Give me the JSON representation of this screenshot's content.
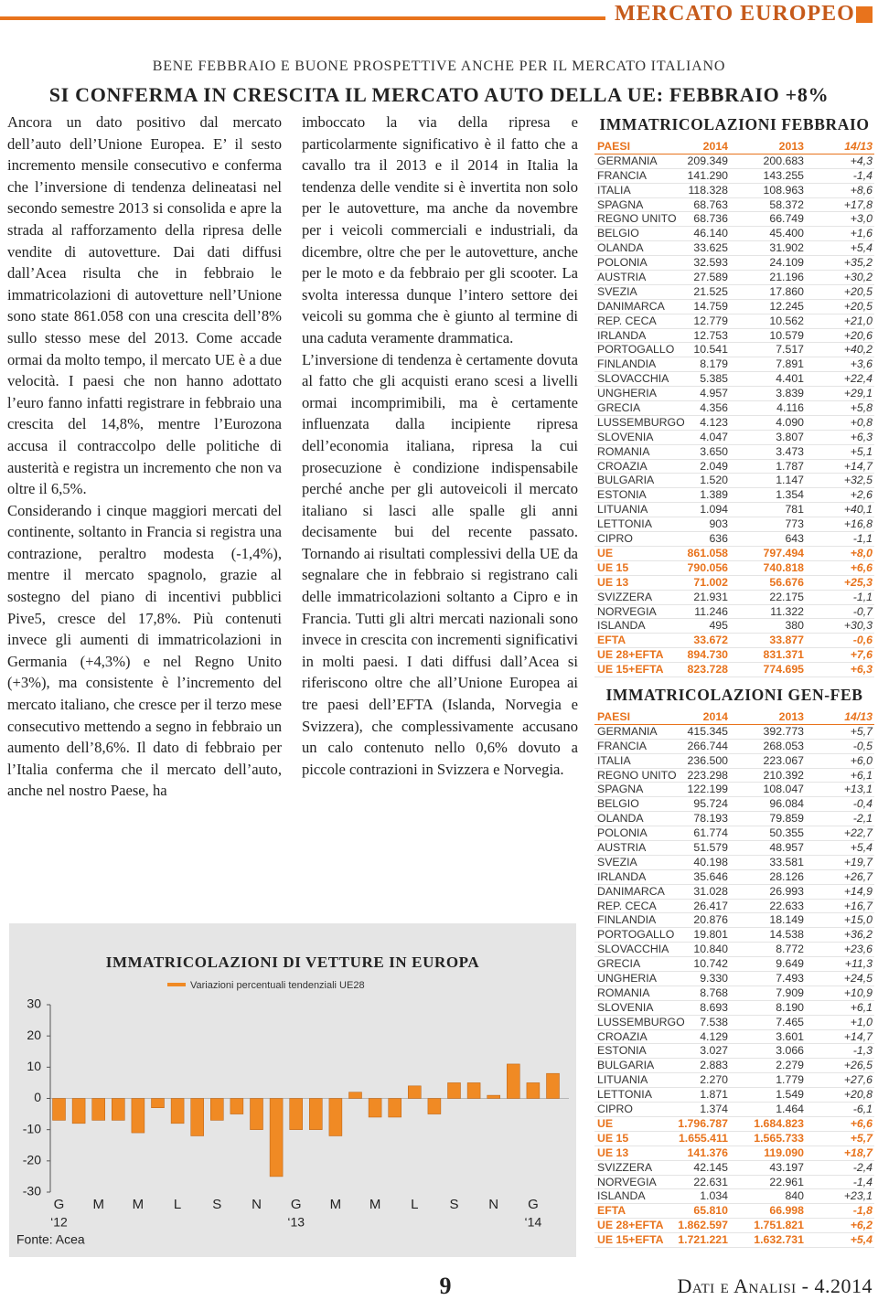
{
  "header": {
    "section": "MERCATO EUROPEO",
    "kicker": "BENE FEBBRAIO E BUONE PROSPETTIVE ANCHE PER IL MERCATO ITALIANO",
    "title": "SI CONFERMA IN CRESCITA IL MERCATO AUTO DELLA UE: FEBBRAIO +8%"
  },
  "article": {
    "column1": [
      "Ancora un dato positivo dal mercato dell’auto dell’Unione Europea. E’ il sesto incremento mensile consecutivo e conferma che l’inversione di tendenza delineatasi nel secondo semestre 2013 si consolida e apre la strada al rafforzamento della ripresa delle vendite di autovetture. Dai dati diffusi dall’Acea risulta che in febbraio le immatricolazioni di autovetture nell’Unione sono state 861.058 con una crescita dell’8% sullo stesso mese del 2013. Come accade ormai da molto tempo, il mercato UE è a due velocità. I paesi che non hanno adottato l’euro fanno infatti registrare in febbraio una crescita del 14,8%, mentre l’Eurozona accusa il contraccolpo delle politiche di austerità e registra un incremento che non va oltre il 6,5%.",
      "Considerando i cinque maggiori mercati del continente, soltanto in Francia si registra una contrazione, peraltro modesta (-1,4%), mentre il mercato spagnolo, grazie al sostegno del piano di incentivi pubblici Pive5, cresce del 17,8%. Più contenuti invece gli aumenti di immatricolazioni in Germania (+4,3%) e nel Regno Unito (+3%), ma consistente è l’incremento del mercato italiano, che cresce per il terzo mese consecutivo mettendo a segno in febbraio un aumento dell’8,6%. Il dato di febbraio per l’Italia conferma che il mercato dell’auto, anche nel nostro Paese, ha"
    ],
    "column2": [
      "imboccato la via della ripresa e particolarmente significativo è il fatto che a cavallo tra il 2013 e il 2014 in Italia la tendenza delle vendite si è invertita non solo per le autovetture, ma anche da novembre per i veicoli commerciali e industriali, da dicembre, oltre che per le autovetture, anche per le moto e da febbraio per gli scooter. La svolta interessa dunque l’intero settore dei veicoli su gomma che è giunto al termine di una caduta veramente drammatica.",
      "L’inversione di tendenza è certamente dovuta al fatto che gli acquisti erano scesi a livelli ormai incomprimibili, ma è certamente influenzata dalla incipiente ripresa dell’economia italiana, ripresa la cui prosecuzione è condizione indispensabile perché anche per gli autoveicoli il mercato italiano si lasci alle spalle gli anni decisamente bui del recente passato. Tornando ai risultati complessivi della UE da segnalare che in febbraio si registrano cali delle immatricolazioni soltanto a Cipro e in Francia. Tutti gli altri mercati nazionali sono invece in crescita con incrementi significativi in molti paesi. I dati diffusi dall’Acea si riferiscono oltre che all’Unione Europea ai tre paesi dell’EFTA (Islanda, Norvegia e Svizzera), che complessivamente accusano un calo contenuto nello 0,6% dovuto a piccole contrazioni in Svizzera e Norvegia."
    ]
  },
  "table_febbraio": {
    "title": "IMMATRICOLAZIONI FEBBRAIO",
    "header": {
      "cells": [
        "PAESI",
        "2014",
        "2013",
        "14/13"
      ],
      "color": "#e8731c"
    },
    "rows": [
      {
        "cells": [
          "GERMANIA",
          "209.349",
          "200.683",
          "+4,3"
        ]
      },
      {
        "cells": [
          "FRANCIA",
          "141.290",
          "143.255",
          "-1,4"
        ]
      },
      {
        "cells": [
          "ITALIA",
          "118.328",
          "108.963",
          "+8,6"
        ]
      },
      {
        "cells": [
          "SPAGNA",
          "68.763",
          "58.372",
          "+17,8"
        ]
      },
      {
        "cells": [
          "REGNO UNITO",
          "68.736",
          "66.749",
          "+3,0"
        ]
      },
      {
        "cells": [
          "BELGIO",
          "46.140",
          "45.400",
          "+1,6"
        ]
      },
      {
        "cells": [
          "OLANDA",
          "33.625",
          "31.902",
          "+5,4"
        ]
      },
      {
        "cells": [
          "POLONIA",
          "32.593",
          "24.109",
          "+35,2"
        ]
      },
      {
        "cells": [
          "AUSTRIA",
          "27.589",
          "21.196",
          "+30,2"
        ]
      },
      {
        "cells": [
          "SVEZIA",
          "21.525",
          "17.860",
          "+20,5"
        ]
      },
      {
        "cells": [
          "DANIMARCA",
          "14.759",
          "12.245",
          "+20,5"
        ]
      },
      {
        "cells": [
          "REP. CECA",
          "12.779",
          "10.562",
          "+21,0"
        ]
      },
      {
        "cells": [
          "IRLANDA",
          "12.753",
          "10.579",
          "+20,6"
        ]
      },
      {
        "cells": [
          "PORTOGALLO",
          "10.541",
          "7.517",
          "+40,2"
        ]
      },
      {
        "cells": [
          "FINLANDIA",
          "8.179",
          "7.891",
          "+3,6"
        ]
      },
      {
        "cells": [
          "SLOVACCHIA",
          "5.385",
          "4.401",
          "+22,4"
        ]
      },
      {
        "cells": [
          "UNGHERIA",
          "4.957",
          "3.839",
          "+29,1"
        ]
      },
      {
        "cells": [
          "GRECIA",
          "4.356",
          "4.116",
          "+5,8"
        ]
      },
      {
        "cells": [
          "LUSSEMBURGO",
          "4.123",
          "4.090",
          "+0,8"
        ]
      },
      {
        "cells": [
          "SLOVENIA",
          "4.047",
          "3.807",
          "+6,3"
        ]
      },
      {
        "cells": [
          "ROMANIA",
          "3.650",
          "3.473",
          "+5,1"
        ]
      },
      {
        "cells": [
          "CROAZIA",
          "2.049",
          "1.787",
          "+14,7"
        ]
      },
      {
        "cells": [
          "BULGARIA",
          "1.520",
          "1.147",
          "+32,5"
        ]
      },
      {
        "cells": [
          "ESTONIA",
          "1.389",
          "1.354",
          "+2,6"
        ]
      },
      {
        "cells": [
          "LITUANIA",
          "1.094",
          "781",
          "+40,1"
        ]
      },
      {
        "cells": [
          "LETTONIA",
          "903",
          "773",
          "+16,8"
        ]
      },
      {
        "cells": [
          "CIPRO",
          "636",
          "643",
          "-1,1"
        ]
      },
      {
        "cells": [
          "UE",
          "861.058",
          "797.494",
          "+8,0"
        ],
        "color": "#e8731c"
      },
      {
        "cells": [
          "UE 15",
          "790.056",
          "740.818",
          "+6,6"
        ],
        "color": "#e8731c"
      },
      {
        "cells": [
          "UE 13",
          "71.002",
          "56.676",
          "+25,3"
        ],
        "color": "#e8731c"
      },
      {
        "cells": [
          "SVIZZERA",
          "21.931",
          "22.175",
          "-1,1"
        ]
      },
      {
        "cells": [
          "NORVEGIA",
          "11.246",
          "11.322",
          "-0,7"
        ]
      },
      {
        "cells": [
          "ISLANDA",
          "495",
          "380",
          "+30,3"
        ]
      },
      {
        "cells": [
          "EFTA",
          "33.672",
          "33.877",
          "-0,6"
        ],
        "color": "#e8731c"
      },
      {
        "cells": [
          "UE 28+EFTA",
          "894.730",
          "831.371",
          "+7,6"
        ],
        "color": "#e8731c"
      },
      {
        "cells": [
          "UE 15+EFTA",
          "823.728",
          "774.695",
          "+6,3"
        ],
        "color": "#e8731c"
      }
    ]
  },
  "table_genfeb": {
    "title": "IMMATRICOLAZIONI GEN-FEB",
    "header": {
      "cells": [
        "PAESI",
        "2014",
        "2013",
        "14/13"
      ],
      "color": "#e8731c"
    },
    "rows": [
      {
        "cells": [
          "GERMANIA",
          "415.345",
          "392.773",
          "+5,7"
        ]
      },
      {
        "cells": [
          "FRANCIA",
          "266.744",
          "268.053",
          "-0,5"
        ]
      },
      {
        "cells": [
          "ITALIA",
          "236.500",
          "223.067",
          "+6,0"
        ]
      },
      {
        "cells": [
          "REGNO UNITO",
          "223.298",
          "210.392",
          "+6,1"
        ]
      },
      {
        "cells": [
          "SPAGNA",
          "122.199",
          "108.047",
          "+13,1"
        ]
      },
      {
        "cells": [
          "BELGIO",
          "95.724",
          "96.084",
          "-0,4"
        ]
      },
      {
        "cells": [
          "OLANDA",
          "78.193",
          "79.859",
          "-2,1"
        ]
      },
      {
        "cells": [
          "POLONIA",
          "61.774",
          "50.355",
          "+22,7"
        ]
      },
      {
        "cells": [
          "AUSTRIA",
          "51.579",
          "48.957",
          "+5,4"
        ]
      },
      {
        "cells": [
          "SVEZIA",
          "40.198",
          "33.581",
          "+19,7"
        ]
      },
      {
        "cells": [
          "IRLANDA",
          "35.646",
          "28.126",
          "+26,7"
        ]
      },
      {
        "cells": [
          "DANIMARCA",
          "31.028",
          "26.993",
          "+14,9"
        ]
      },
      {
        "cells": [
          "REP. CECA",
          "26.417",
          "22.633",
          "+16,7"
        ]
      },
      {
        "cells": [
          "FINLANDIA",
          "20.876",
          "18.149",
          "+15,0"
        ]
      },
      {
        "cells": [
          "PORTOGALLO",
          "19.801",
          "14.538",
          "+36,2"
        ]
      },
      {
        "cells": [
          "SLOVACCHIA",
          "10.840",
          "8.772",
          "+23,6"
        ]
      },
      {
        "cells": [
          "GRECIA",
          "10.742",
          "9.649",
          "+11,3"
        ]
      },
      {
        "cells": [
          "UNGHERIA",
          "9.330",
          "7.493",
          "+24,5"
        ]
      },
      {
        "cells": [
          "ROMANIA",
          "8.768",
          "7.909",
          "+10,9"
        ]
      },
      {
        "cells": [
          "SLOVENIA",
          "8.693",
          "8.190",
          "+6,1"
        ]
      },
      {
        "cells": [
          "LUSSEMBURGO",
          "7.538",
          "7.465",
          "+1,0"
        ]
      },
      {
        "cells": [
          "CROAZIA",
          "4.129",
          "3.601",
          "+14,7"
        ]
      },
      {
        "cells": [
          "ESTONIA",
          "3.027",
          "3.066",
          "-1,3"
        ]
      },
      {
        "cells": [
          "BULGARIA",
          "2.883",
          "2.279",
          "+26,5"
        ]
      },
      {
        "cells": [
          "LITUANIA",
          "2.270",
          "1.779",
          "+27,6"
        ]
      },
      {
        "cells": [
          "LETTONIA",
          "1.871",
          "1.549",
          "+20,8"
        ]
      },
      {
        "cells": [
          "CIPRO",
          "1.374",
          "1.464",
          "-6,1"
        ]
      },
      {
        "cells": [
          "UE",
          "1.796.787",
          "1.684.823",
          "+6,6"
        ],
        "color": "#e8731c"
      },
      {
        "cells": [
          "UE 15",
          "1.655.411",
          "1.565.733",
          "+5,7"
        ],
        "color": "#e8731c"
      },
      {
        "cells": [
          "UE 13",
          "141.376",
          "119.090",
          "+18,7"
        ],
        "color": "#e8731c"
      },
      {
        "cells": [
          "SVIZZERA",
          "42.145",
          "43.197",
          "-2,4"
        ]
      },
      {
        "cells": [
          "NORVEGIA",
          "22.631",
          "22.961",
          "-1,4"
        ]
      },
      {
        "cells": [
          "ISLANDA",
          "1.034",
          "840",
          "+23,1"
        ]
      },
      {
        "cells": [
          "EFTA",
          "65.810",
          "66.998",
          "-1,8"
        ],
        "color": "#e8731c"
      },
      {
        "cells": [
          "UE 28+EFTA",
          "1.862.597",
          "1.751.821",
          "+6,2"
        ],
        "color": "#e8731c"
      },
      {
        "cells": [
          "UE 15+EFTA",
          "1.721.221",
          "1.632.731",
          "+5,4"
        ],
        "color": "#e8731c"
      }
    ]
  },
  "chart_data": {
    "type": "bar",
    "title": "IMMATRICOLAZIONI DI VETTURE IN EUROPA",
    "source": "Fonte: Acea",
    "categories": [
      "G",
      null,
      "M",
      null,
      "M",
      null,
      "L",
      null,
      "S",
      null,
      "N",
      null,
      "G",
      null,
      "M",
      null,
      "M",
      null,
      "L",
      null,
      "S",
      null,
      "N",
      null,
      "G",
      null
    ],
    "year_labels": [
      "‘12",
      "‘13",
      "‘14"
    ],
    "series": [
      {
        "name": "Variazioni percentuali tendenziali UE28",
        "color": "#f08a24",
        "values": [
          -7,
          -8,
          -7,
          -7,
          -11,
          -3,
          -8,
          -12,
          -7,
          -5,
          -10,
          -25,
          -10,
          -10,
          -12,
          2,
          -6,
          -6,
          4,
          -5,
          5,
          5,
          1,
          11,
          5,
          8
        ]
      }
    ],
    "ylim": [
      -30,
      30
    ],
    "yticks": [
      30,
      20,
      10,
      0,
      -10,
      -20,
      -30
    ]
  },
  "footer": {
    "page": "9",
    "issue": "Dati e Analisi - 4.2014"
  }
}
